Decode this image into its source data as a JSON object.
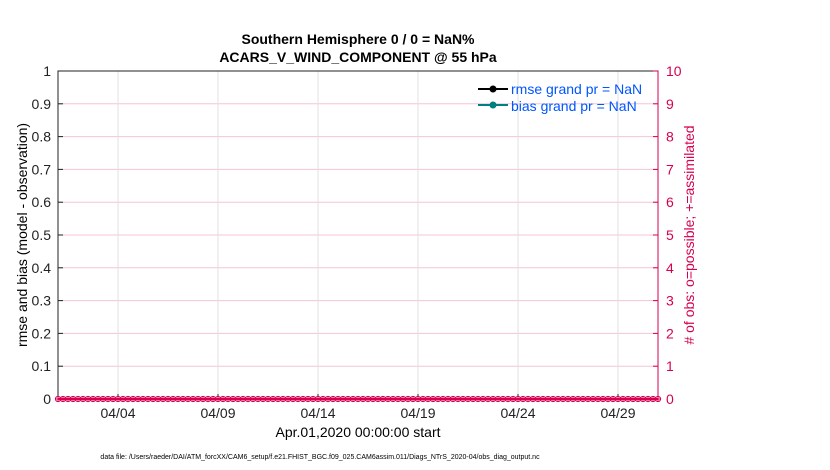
{
  "chart_data": {
    "type": "line",
    "title": [
      "Southern Hemisphere 0 / 0 = NaN%",
      "ACARS_V_WIND_COMPONENT @ 55 hPa"
    ],
    "xlabel": "Apr.01,2020 00:00:00 start",
    "ylabel": "rmse and bias (model - observation)",
    "ylabel_right": "# of obs: o=possible; +=assimilated",
    "footer": "data file: /Users/raeder/DAI/ATM_forcXX/CAM6_setup/f.e21.FHIST_BGC.f09_025.CAM6assim.011/Diags_NTrS_2020-04/obs_diag_output.nc",
    "xlim": [
      "2020-04-01 00:00",
      "2020-05-01 00:00"
    ],
    "x_tick_labels": [
      "04/04",
      "04/09",
      "04/14",
      "04/19",
      "04/24",
      "04/29"
    ],
    "x_tick_dates": [
      "2020-04-04",
      "2020-04-09",
      "2020-04-14",
      "2020-04-19",
      "2020-04-24",
      "2020-04-29"
    ],
    "ylim": [
      0,
      1
    ],
    "y_ticks": [
      "0",
      "0.1",
      "0.2",
      "0.3",
      "0.4",
      "0.5",
      "0.6",
      "0.7",
      "0.8",
      "0.9",
      "1"
    ],
    "ylim_right": [
      0,
      10
    ],
    "y_ticks_right": [
      "0",
      "1",
      "2",
      "3",
      "4",
      "5",
      "6",
      "7",
      "8",
      "9",
      "10"
    ],
    "grid": true,
    "legend_placement": "top-right",
    "series": [
      {
        "name": "rmse grand pr = NaN",
        "color": "#000000",
        "values": []
      },
      {
        "name": "bias grand pr = NaN",
        "color": "#008080",
        "values": []
      }
    ],
    "obs_series": {
      "color": "#d6004f",
      "x_start": "2020-04-01 00:00",
      "x_interval_hours": 6,
      "possible": [
        0,
        0,
        0,
        0,
        0,
        0,
        0,
        0,
        0,
        0,
        0,
        0,
        0,
        0,
        0,
        0,
        0,
        0,
        0,
        0,
        0,
        0,
        0,
        0,
        0,
        0,
        0,
        0,
        0,
        0,
        0,
        0,
        0,
        0,
        0,
        0,
        0,
        0,
        0,
        0,
        0,
        0,
        0,
        0,
        0,
        0,
        0,
        0,
        0,
        0,
        0,
        0,
        0,
        0,
        0,
        0,
        0,
        0,
        0,
        0,
        0,
        0,
        0,
        0,
        0,
        0,
        0,
        0,
        0,
        0,
        0,
        0,
        0,
        0,
        0,
        0,
        0,
        0,
        0,
        0,
        0,
        0,
        0,
        0,
        0,
        0,
        0,
        0,
        0,
        0,
        0,
        0,
        0,
        0,
        0,
        0,
        0,
        0,
        0,
        0,
        0,
        0,
        0,
        0,
        0,
        0,
        0,
        0,
        0,
        0,
        0,
        0,
        0,
        0,
        0,
        0,
        0,
        0,
        0,
        0,
        0
      ],
      "assimilated": [
        0,
        0,
        0,
        0,
        0,
        0,
        0,
        0,
        0,
        0,
        0,
        0,
        0,
        0,
        0,
        0,
        0,
        0,
        0,
        0,
        0,
        0,
        0,
        0,
        0,
        0,
        0,
        0,
        0,
        0,
        0,
        0,
        0,
        0,
        0,
        0,
        0,
        0,
        0,
        0,
        0,
        0,
        0,
        0,
        0,
        0,
        0,
        0,
        0,
        0,
        0,
        0,
        0,
        0,
        0,
        0,
        0,
        0,
        0,
        0,
        0,
        0,
        0,
        0,
        0,
        0,
        0,
        0,
        0,
        0,
        0,
        0,
        0,
        0,
        0,
        0,
        0,
        0,
        0,
        0,
        0,
        0,
        0,
        0,
        0,
        0,
        0,
        0,
        0,
        0,
        0,
        0,
        0,
        0,
        0,
        0,
        0,
        0,
        0,
        0,
        0,
        0,
        0,
        0,
        0,
        0,
        0,
        0,
        0,
        0,
        0,
        0,
        0,
        0,
        0,
        0,
        0,
        0,
        0,
        0,
        0
      ]
    },
    "legend_text_color": "#0055ff"
  }
}
